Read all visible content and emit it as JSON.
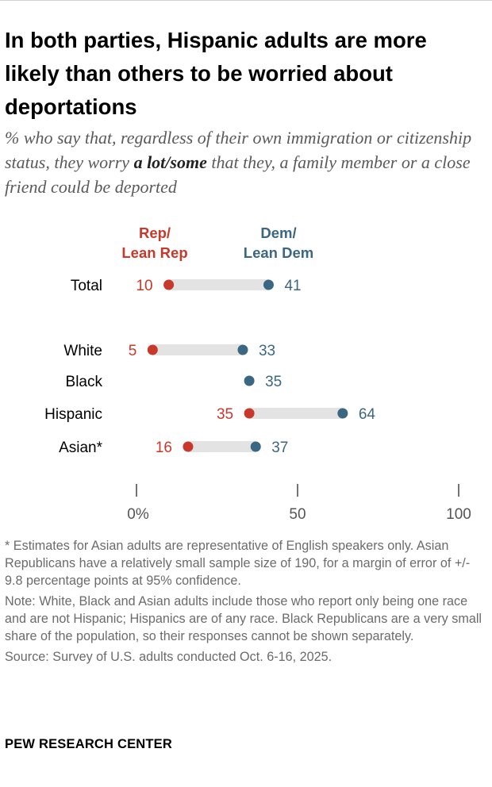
{
  "title": "In both parties, Hispanic adults are more likely than others to be worried about deportations",
  "subtitle_parts": {
    "before": "% who say that, regardless of their own immigration or citizenship status, they worry ",
    "emphasis": "a lot/some",
    "after": " that they, a family member or a close friend could be deported"
  },
  "chart_data": {
    "type": "dot-plot",
    "series": [
      {
        "name": "Rep/ Lean Rep",
        "label_lines": [
          "Rep/",
          "Lean Rep"
        ],
        "color": "#c8392b"
      },
      {
        "name": "Dem/ Lean Dem",
        "label_lines": [
          "Dem/",
          "Lean Dem"
        ],
        "color": "#3b6782"
      }
    ],
    "categories": [
      "Total",
      "White",
      "Black",
      "Hispanic",
      "Asian*"
    ],
    "values": {
      "Rep/ Lean Rep": [
        10,
        5,
        null,
        35,
        16
      ],
      "Dem/ Lean Dem": [
        41,
        33,
        35,
        64,
        37
      ]
    },
    "xlim": [
      0,
      100
    ],
    "xticks": [
      0,
      50,
      100
    ],
    "xtick_labels": [
      "0%",
      "50",
      "100"
    ],
    "grid": false
  },
  "notes": [
    "* Estimates for Asian adults are representative of English speakers only. Asian Republicans have a relatively small sample size of 190, for a margin of error of +/- 9.8 percentage points at 95% confidence.",
    "Note: White, Black and Asian adults include those who report only being one race and are not Hispanic; Hispanics are of any race. Black Republicans are a very small share of the population, so their responses cannot be shown separately.",
    "Source: Survey of U.S. adults conducted Oct. 6-16, 2025."
  ],
  "brand": "PEW RESEARCH CENTER",
  "colors": {
    "rep": "#c8392b",
    "dem": "#3b6782",
    "bar": "#e3e3e3",
    "axis": "#444444"
  }
}
